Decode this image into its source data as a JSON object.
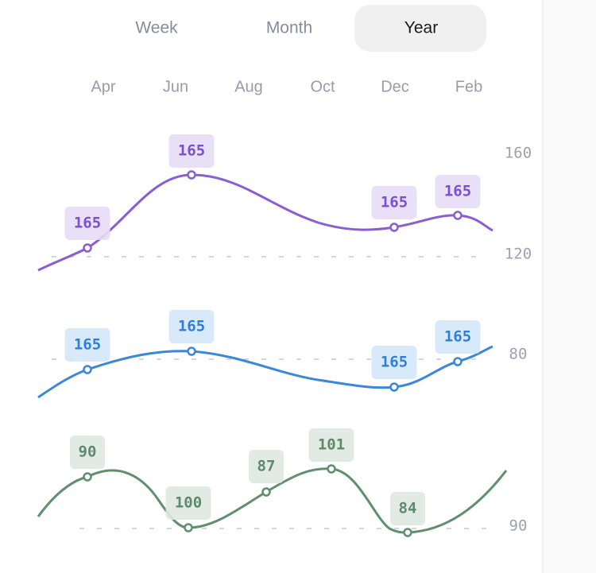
{
  "tabs": [
    "Week",
    "Month",
    "Year"
  ],
  "selected_tab": 2,
  "months": [
    "Apr",
    "Jun",
    "Aug",
    "Oct",
    "Dec",
    "Feb"
  ],
  "axis_labels": [
    "160",
    "120",
    "80",
    "90"
  ],
  "series": [
    {
      "color": "#8a5cd6",
      "labels": [
        "165",
        "165",
        "165",
        "165"
      ]
    },
    {
      "color": "#3a87dc",
      "labels": [
        "165",
        "165",
        "165",
        "165"
      ]
    },
    {
      "color": "#5f8f6f",
      "labels": [
        "90",
        "100",
        "87",
        "101",
        "84"
      ]
    }
  ]
}
